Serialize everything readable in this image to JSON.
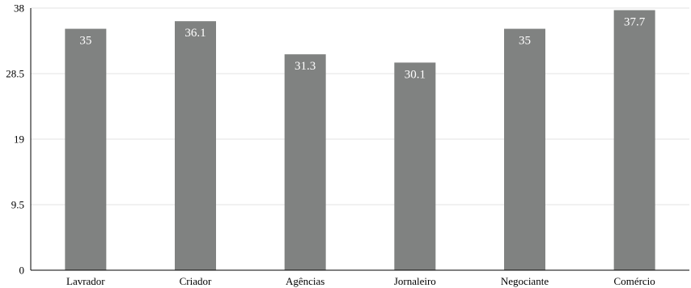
{
  "chart_data": {
    "type": "bar",
    "title": "",
    "xlabel": "",
    "ylabel": "",
    "categories": [
      "Lavrador",
      "Criador",
      "Agências",
      "Jornaleiro",
      "Negociante",
      "Comércio"
    ],
    "values": [
      35,
      36.1,
      31.3,
      30.1,
      35,
      37.7
    ],
    "value_labels": [
      "35",
      "36.1",
      "31.3",
      "30.1",
      "35",
      "37.7"
    ],
    "ylim": [
      0,
      38
    ],
    "yticks": [
      0,
      9.5,
      19,
      28.5,
      38
    ],
    "ytick_labels": [
      "0",
      "9.5",
      "19",
      "28.5",
      "38"
    ],
    "grid": true,
    "legend": "none",
    "bar_color": "#808281",
    "value_label_color": "#ffffff",
    "grid_color": "#e3e3e3"
  }
}
